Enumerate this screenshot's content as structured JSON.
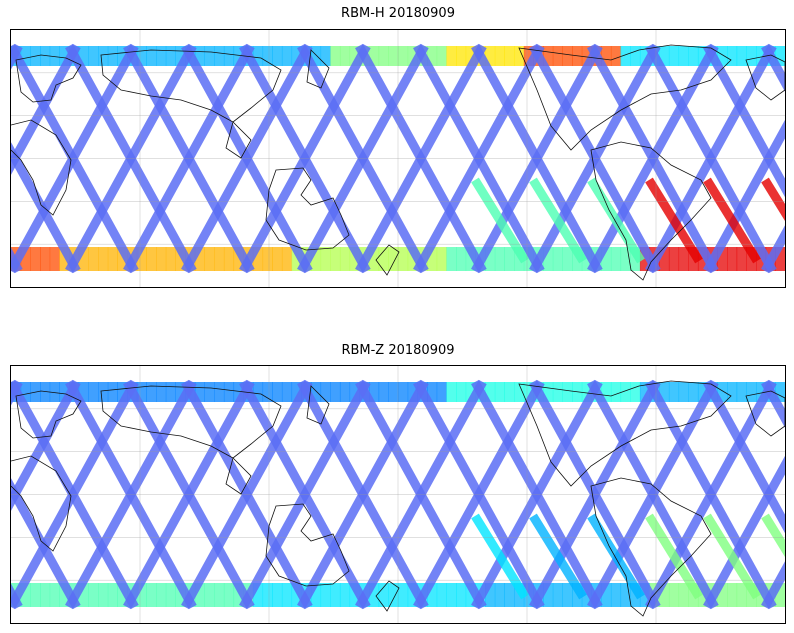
{
  "panels": [
    {
      "id": "h",
      "title": "RBM-H 20180909",
      "high_lat": [
        {
          "lon_start": 0.0,
          "lon_end": 0.06,
          "level": 0.8
        },
        {
          "lon_start": 0.06,
          "lon_end": 0.35,
          "level": 0.7
        },
        {
          "lon_start": 0.35,
          "lon_end": 0.55,
          "level": 0.55
        },
        {
          "lon_start": 0.55,
          "lon_end": 0.8,
          "level": 0.45
        },
        {
          "lon_start": 0.8,
          "lon_end": 1.0,
          "level": 0.9
        }
      ],
      "north_band": [
        {
          "lon_start": 0.0,
          "lon_end": 0.4,
          "level": 0.3
        },
        {
          "lon_start": 0.4,
          "lon_end": 0.55,
          "level": 0.5
        },
        {
          "lon_start": 0.55,
          "lon_end": 0.66,
          "level": 0.65
        },
        {
          "lon_start": 0.66,
          "lon_end": 0.78,
          "level": 0.8
        },
        {
          "lon_start": 0.78,
          "lon_end": 1.0,
          "level": 0.35
        }
      ]
    },
    {
      "id": "z",
      "title": "RBM-Z 20180909",
      "high_lat": [
        {
          "lon_start": 0.0,
          "lon_end": 0.3,
          "level": 0.45
        },
        {
          "lon_start": 0.3,
          "lon_end": 0.6,
          "level": 0.35
        },
        {
          "lon_start": 0.6,
          "lon_end": 0.82,
          "level": 0.3
        },
        {
          "lon_start": 0.82,
          "lon_end": 1.0,
          "level": 0.5
        }
      ],
      "north_band": [
        {
          "lon_start": 0.0,
          "lon_end": 0.55,
          "level": 0.25
        },
        {
          "lon_start": 0.55,
          "lon_end": 0.8,
          "level": 0.4
        },
        {
          "lon_start": 0.8,
          "lon_end": 1.0,
          "level": 0.3
        }
      ]
    }
  ]
}
